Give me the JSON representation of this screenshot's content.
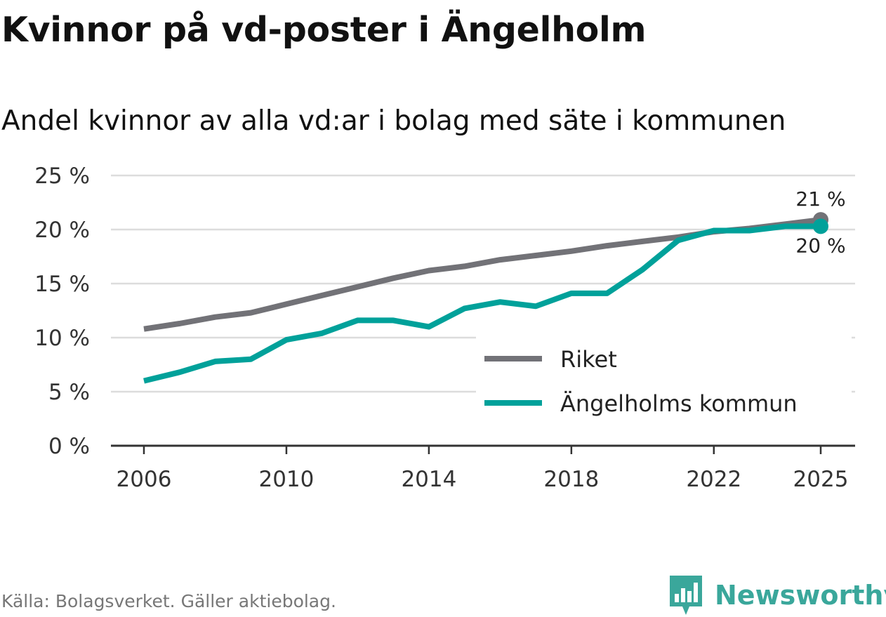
{
  "title": "Kvinnor på vd-poster i Ängelholm",
  "subtitle": "Andel kvinnor av alla vd:ar i bolag med säte i kommunen",
  "source": "Källa: Bolagsverket. Gäller aktiebolag.",
  "brand": {
    "name": "Newsworthy",
    "icon": "newsworthy-logo-icon",
    "color": "#3aa79b"
  },
  "chart_data": {
    "type": "line",
    "title": "Andel kvinnor av alla vd:ar i bolag med säte i kommunen",
    "xlabel": "",
    "ylabel": "",
    "x": [
      2006,
      2007,
      2008,
      2009,
      2010,
      2011,
      2012,
      2013,
      2014,
      2015,
      2016,
      2017,
      2018,
      2019,
      2020,
      2021,
      2022,
      2023,
      2024,
      2025
    ],
    "xlim": [
      2006,
      2025
    ],
    "ylim": [
      0,
      25
    ],
    "x_ticks": [
      2006,
      2010,
      2014,
      2018,
      2022,
      2025
    ],
    "x_tick_labels": [
      "2006",
      "2010",
      "2014",
      "2018",
      "2022",
      "2025"
    ],
    "y_ticks": [
      0,
      5,
      10,
      15,
      20,
      25
    ],
    "y_tick_labels": [
      "0 %",
      "5 %",
      "10 %",
      "15 %",
      "20 %",
      "25 %"
    ],
    "grid": true,
    "legend_position": "bottom-right",
    "series": [
      {
        "name": "Riket",
        "color": "#727277",
        "values": [
          10.8,
          11.3,
          11.9,
          12.3,
          13.1,
          13.9,
          14.7,
          15.5,
          16.2,
          16.6,
          17.2,
          17.6,
          18.0,
          18.5,
          18.9,
          19.3,
          19.8,
          20.1,
          20.5,
          20.9
        ],
        "end_label": "21 %"
      },
      {
        "name": "Ängelholms kommun",
        "color": "#00a19a",
        "values": [
          6.0,
          6.8,
          7.8,
          8.0,
          9.8,
          10.4,
          11.6,
          11.6,
          11.0,
          12.7,
          13.3,
          12.9,
          14.1,
          14.1,
          16.3,
          19.0,
          19.9,
          19.9,
          20.3,
          20.3
        ],
        "end_label": "20 %"
      }
    ]
  }
}
